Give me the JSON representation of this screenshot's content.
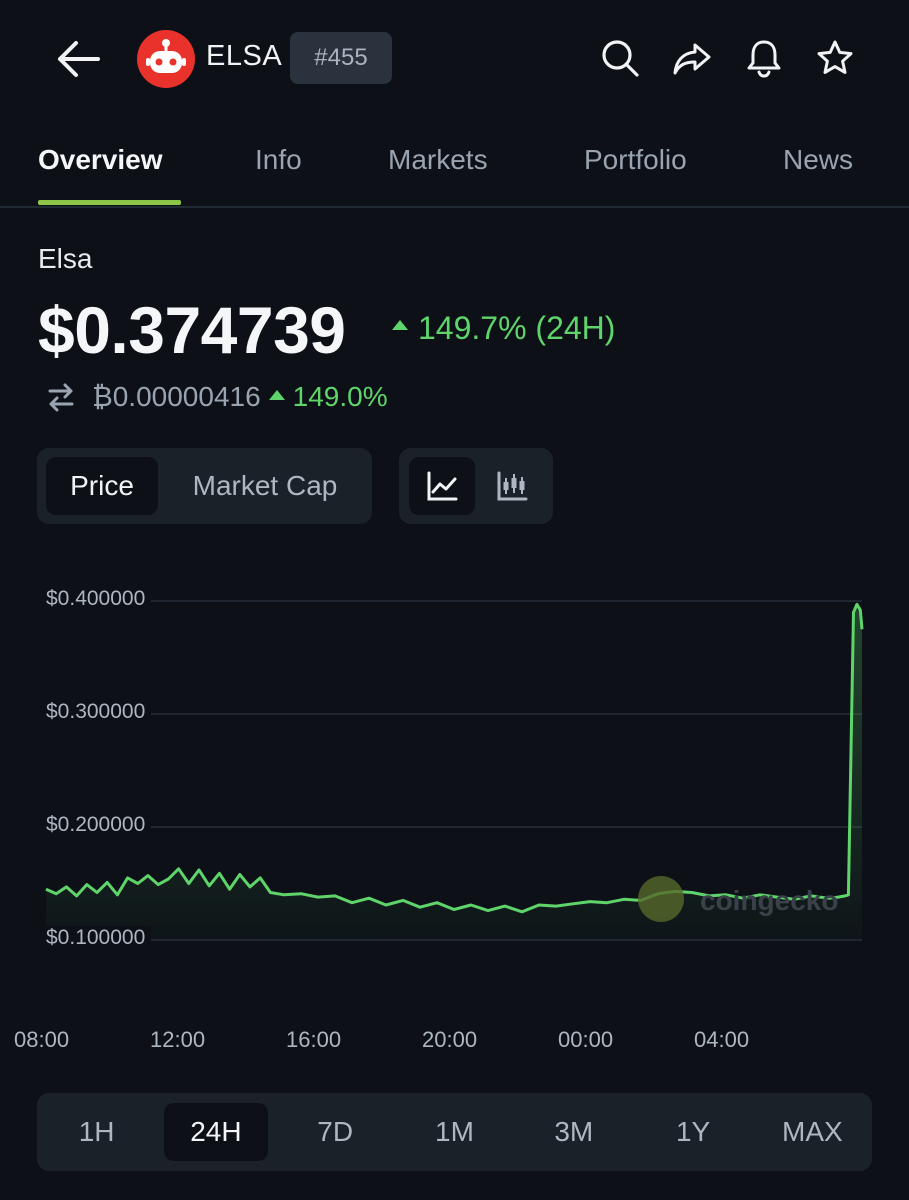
{
  "header": {
    "symbol": "ELSA",
    "rank": "#455",
    "icons": [
      "back-arrow-icon",
      "search-icon",
      "share-icon",
      "bell-icon",
      "star-icon"
    ]
  },
  "tabs": [
    "Overview",
    "Info",
    "Markets",
    "Portfolio",
    "News"
  ],
  "active_tab": "Overview",
  "coin": {
    "name": "Elsa",
    "price": "$0.374739",
    "change_24h": "149.7% (24H)",
    "btc_price": "₿0.00000416",
    "btc_change": "149.0%"
  },
  "toggles": {
    "price": "Price",
    "market_cap": "Market Cap",
    "chart_icons": [
      "line-chart-icon",
      "candlestick-icon"
    ]
  },
  "watermark": "coingecko",
  "colors": {
    "accent": "#8dc647",
    "up": "#5ed46a",
    "line": "#5ed46a",
    "background": "#0d1117"
  },
  "ranges": [
    "1H",
    "24H",
    "7D",
    "1M",
    "3M",
    "1Y",
    "MAX"
  ],
  "active_range": "24H",
  "chart_data": {
    "type": "line",
    "title": "",
    "xlabel": "",
    "ylabel": "",
    "ytick_labels": [
      "$0.400000",
      "$0.300000",
      "$0.200000",
      "$0.100000"
    ],
    "yticks": [
      0.4,
      0.3,
      0.2,
      0.1
    ],
    "xtick_labels": [
      "08:00",
      "12:00",
      "16:00",
      "20:00",
      "00:00",
      "04:00"
    ],
    "xticks": [
      8,
      12,
      16,
      20,
      24,
      28
    ],
    "ylim": [
      0.1,
      0.4
    ],
    "xlim": [
      8,
      32
    ],
    "grid": true,
    "series": [
      {
        "x": [
          8.0,
          8.3,
          8.6,
          8.9,
          9.2,
          9.5,
          9.8,
          10.1,
          10.4,
          10.7,
          11.0,
          11.3,
          11.6,
          11.9,
          12.2,
          12.5,
          12.8,
          13.1,
          13.4,
          13.7,
          14.0,
          14.3,
          14.6,
          15.0,
          15.5,
          16.0,
          16.5,
          17.0,
          17.5,
          18.0,
          18.5,
          19.0,
          19.5,
          20.0,
          20.5,
          21.0,
          21.5,
          22.0,
          22.5,
          23.0,
          23.5,
          24.0,
          24.5,
          25.0,
          25.5,
          26.0,
          26.5,
          27.0,
          27.5,
          28.0,
          28.5,
          29.0,
          29.5,
          30.0,
          30.5,
          31.0,
          31.3,
          31.5,
          31.6,
          31.75,
          31.85,
          31.95,
          32.0
        ],
        "y": [
          0.145,
          0.141,
          0.147,
          0.139,
          0.149,
          0.142,
          0.151,
          0.14,
          0.155,
          0.15,
          0.157,
          0.149,
          0.154,
          0.163,
          0.15,
          0.162,
          0.148,
          0.159,
          0.145,
          0.158,
          0.147,
          0.155,
          0.142,
          0.14,
          0.141,
          0.138,
          0.139,
          0.133,
          0.137,
          0.131,
          0.135,
          0.129,
          0.133,
          0.127,
          0.131,
          0.126,
          0.13,
          0.125,
          0.131,
          0.13,
          0.132,
          0.134,
          0.133,
          0.136,
          0.135,
          0.141,
          0.143,
          0.142,
          0.139,
          0.14,
          0.137,
          0.14,
          0.138,
          0.136,
          0.139,
          0.137,
          0.138,
          0.139,
          0.14,
          0.39,
          0.397,
          0.392,
          0.375
        ]
      }
    ]
  }
}
